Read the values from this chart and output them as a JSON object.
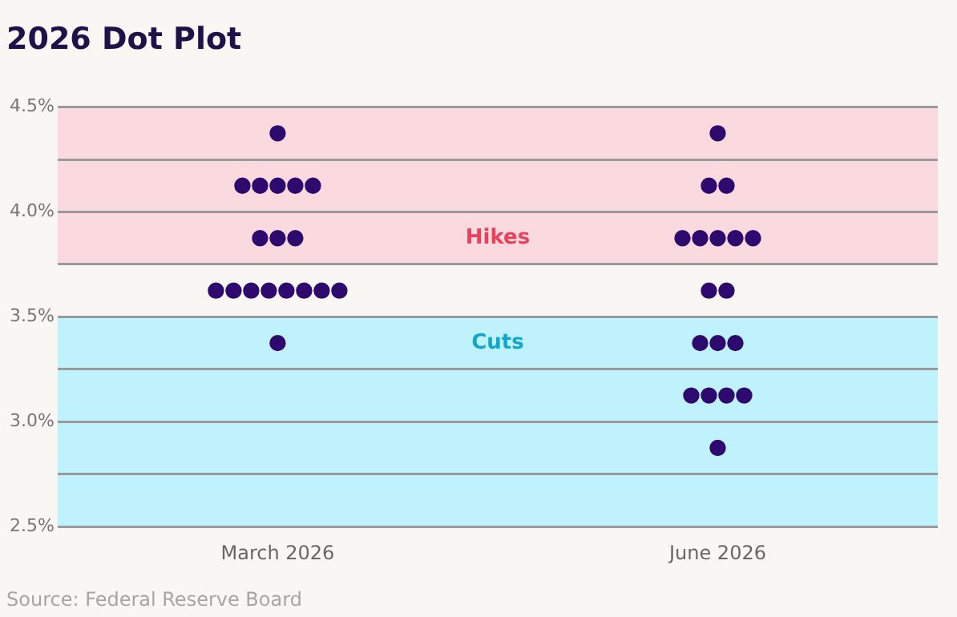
{
  "chart_data": {
    "type": "scatter",
    "title": "2026 Dot Plot",
    "categories": [
      "March 2026",
      "June 2026"
    ],
    "series": [
      {
        "color": "#2e0a6e",
        "x": [
          "March 2026",
          "March 2026",
          "March 2026",
          "March 2026",
          "March 2026",
          "March 2026",
          "March 2026",
          "March 2026",
          "March 2026",
          "March 2026",
          "March 2026",
          "March 2026",
          "March 2026",
          "March 2026",
          "March 2026",
          "March 2026",
          "March 2026",
          "March 2026",
          "June 2026",
          "June 2026",
          "June 2026",
          "June 2026",
          "June 2026",
          "June 2026",
          "June 2026",
          "June 2026",
          "June 2026",
          "June 2026",
          "June 2026",
          "June 2026",
          "June 2026",
          "June 2026",
          "June 2026",
          "June 2026",
          "June 2026",
          "June 2026"
        ],
        "values": [
          4.375,
          4.125,
          4.125,
          4.125,
          4.125,
          4.125,
          3.875,
          3.875,
          3.875,
          3.625,
          3.625,
          3.625,
          3.625,
          3.625,
          3.625,
          3.625,
          3.625,
          3.375,
          4.375,
          4.125,
          4.125,
          3.875,
          3.875,
          3.875,
          3.875,
          3.875,
          3.625,
          3.625,
          3.375,
          3.375,
          3.375,
          3.125,
          3.125,
          3.125,
          3.125,
          2.875
        ]
      }
    ],
    "ylim": [
      2.5,
      4.5
    ],
    "yticks": [
      {
        "value": 2.5,
        "label": "2.5%"
      },
      {
        "value": 2.75,
        "label": null
      },
      {
        "value": 3.0,
        "label": "3.0%"
      },
      {
        "value": 3.25,
        "label": null
      },
      {
        "value": 3.5,
        "label": "3.5%"
      },
      {
        "value": 3.75,
        "label": null
      },
      {
        "value": 4.0,
        "label": "4.0%"
      },
      {
        "value": 4.25,
        "label": null
      },
      {
        "value": 4.5,
        "label": "4.5%"
      }
    ],
    "bands": [
      {
        "axis": "y",
        "from": 3.75,
        "to": 4.5,
        "label": "Hikes",
        "color": "#fadadf"
      },
      {
        "axis": "y",
        "from": 2.5,
        "to": 3.5,
        "label": "Cuts",
        "color": "#bff2fc"
      }
    ],
    "grid": "y",
    "legend": false,
    "marker": "circle",
    "annotations": [
      "Source: Federal Reserve Board"
    ]
  }
}
